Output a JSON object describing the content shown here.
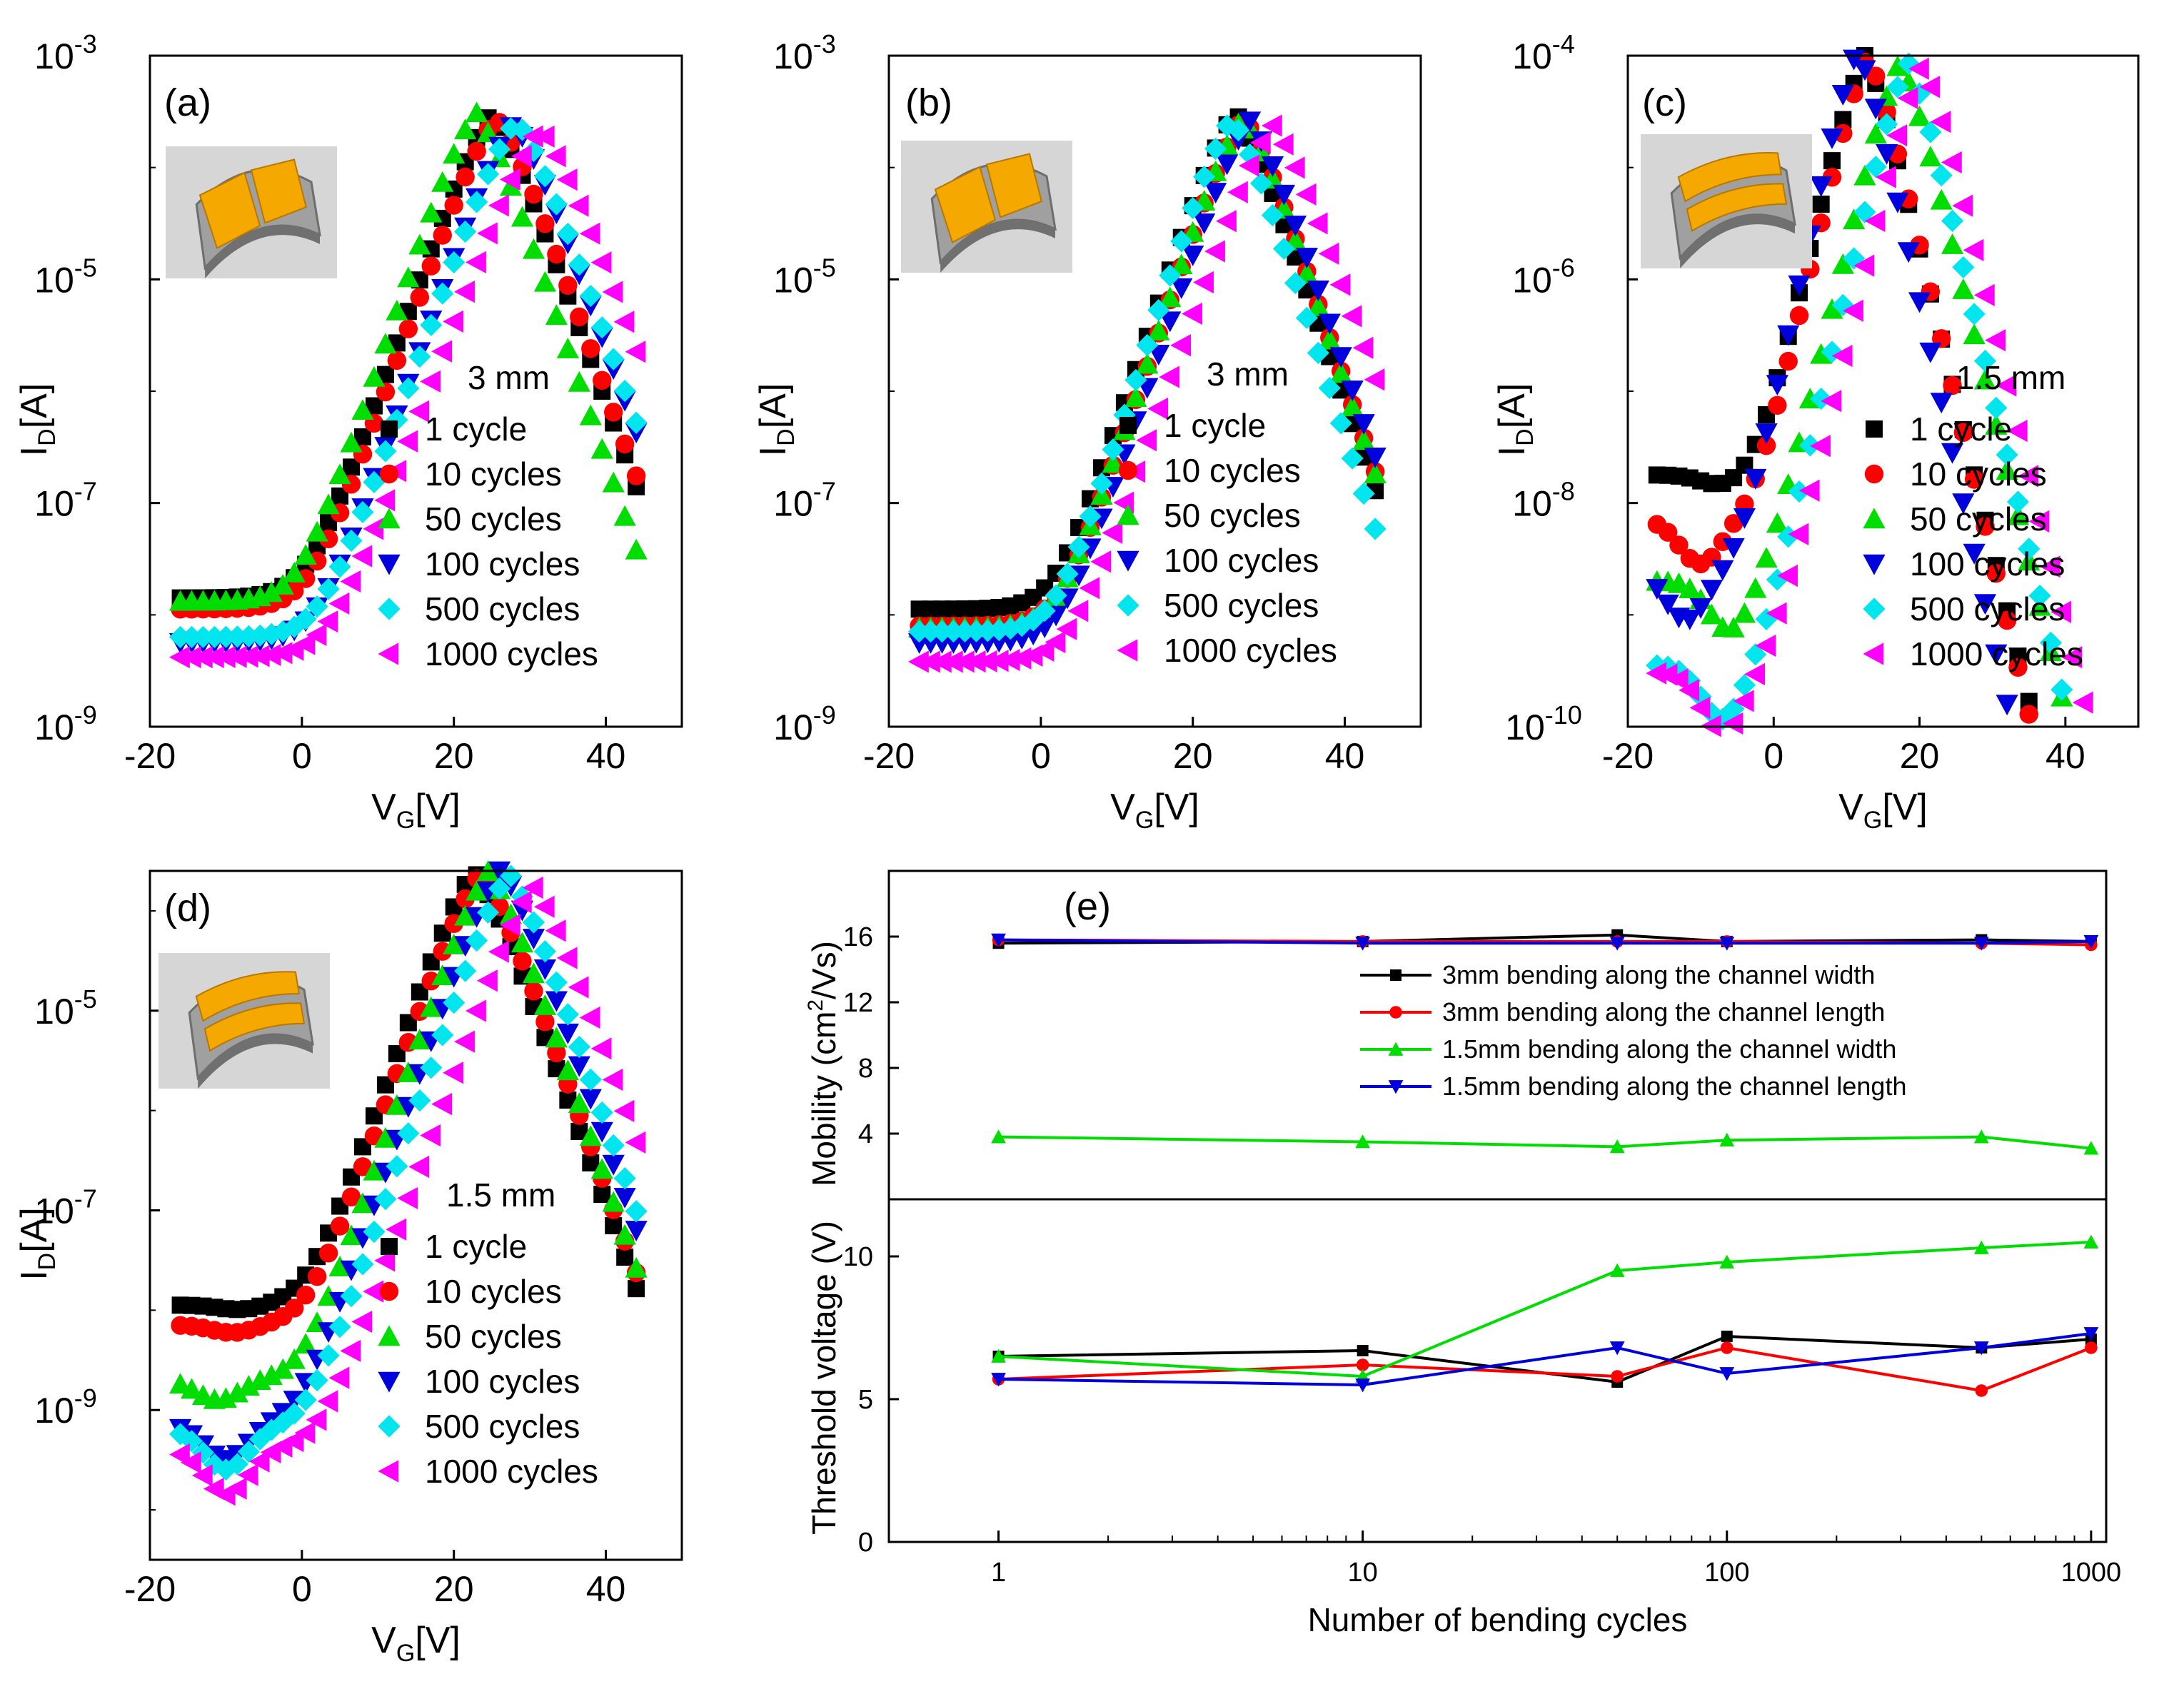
{
  "chart_data": [
    {
      "id": "a",
      "type": "scatter",
      "panel_label": "(a)",
      "annotation": "3 mm",
      "xlabel": "V",
      "xlabel_sub": "G",
      "xlabel_unit": "[V]",
      "ylabel": "I",
      "ylabel_sub": "D",
      "ylabel_unit": "[A]",
      "xlim": [
        -20,
        50
      ],
      "ylim_log10": [
        -9,
        -3
      ],
      "x_ticks": [
        "-20",
        "0",
        "20",
        "40"
      ],
      "y_ticks": [
        {
          "base": "10",
          "exp": "-3"
        },
        {
          "base": "10",
          "exp": "-5"
        },
        {
          "base": "10",
          "exp": "-7"
        },
        {
          "base": "10",
          "exp": "-9"
        }
      ],
      "inset": "channel-width bending",
      "series": [
        {
          "name": "1 cycle",
          "color": "#000000",
          "marker": "square",
          "floor": -8.15,
          "x0": 0.5,
          "slope": 0.19,
          "sat": -3.52
        },
        {
          "name": "10 cycles",
          "color": "#ff0000",
          "marker": "circle",
          "floor": -8.25,
          "x0": 0.8,
          "slope": 0.19,
          "sat": -3.55
        },
        {
          "name": "50 cycles",
          "color": "#00dd00",
          "marker": "triangle-up",
          "floor": -8.18,
          "x0": -0.5,
          "slope": 0.2,
          "sat": -3.5
        },
        {
          "name": "100 cycles",
          "color": "#0000dd",
          "marker": "triangle-down",
          "floor": -8.55,
          "x0": 1.8,
          "slope": 0.19,
          "sat": -3.6
        },
        {
          "name": "500 cycles",
          "color": "#00e5ee",
          "marker": "diamond",
          "floor": -8.5,
          "x0": 2.3,
          "slope": 0.19,
          "sat": -3.58
        },
        {
          "name": "1000 cycles",
          "color": "#ff00ff",
          "marker": "triangle-left",
          "floor": -8.68,
          "x0": 3.3,
          "slope": 0.18,
          "sat": -3.65
        }
      ]
    },
    {
      "id": "b",
      "type": "scatter",
      "panel_label": "(b)",
      "annotation": "3 mm",
      "xlabel": "V",
      "xlabel_sub": "G",
      "xlabel_unit": "[V]",
      "ylabel": "I",
      "ylabel_sub": "D",
      "ylabel_unit": "[A]",
      "xlim": [
        -20,
        50
      ],
      "ylim_log10": [
        -9,
        -3
      ],
      "x_ticks": [
        "-20",
        "0",
        "20",
        "40"
      ],
      "y_ticks": [
        {
          "base": "10",
          "exp": "-3"
        },
        {
          "base": "10",
          "exp": "-5"
        },
        {
          "base": "10",
          "exp": "-7"
        },
        {
          "base": "10",
          "exp": "-9"
        }
      ],
      "inset": "channel-width bending",
      "series": [
        {
          "name": "1 cycle",
          "color": "#000000",
          "marker": "square",
          "floor": -8.25,
          "x0": 1.8,
          "slope": 0.2,
          "sat": -3.5
        },
        {
          "name": "10 cycles",
          "color": "#ff0000",
          "marker": "circle",
          "floor": -8.4,
          "x0": 2.4,
          "slope": 0.2,
          "sat": -3.55
        },
        {
          "name": "50 cycles",
          "color": "#00dd00",
          "marker": "triangle-up",
          "floor": -8.42,
          "x0": 2.2,
          "slope": 0.2,
          "sat": -3.55
        },
        {
          "name": "100 cycles",
          "color": "#0000dd",
          "marker": "triangle-down",
          "floor": -8.55,
          "x0": 2.6,
          "slope": 0.2,
          "sat": -3.58
        },
        {
          "name": "500 cycles",
          "color": "#00e5ee",
          "marker": "diamond",
          "floor": -8.45,
          "x0": 1.8,
          "slope": 0.21,
          "sat": -3.56
        },
        {
          "name": "1000 cycles",
          "color": "#ff00ff",
          "marker": "triangle-left",
          "floor": -8.72,
          "x0": 3.6,
          "slope": 0.19,
          "sat": -3.62
        }
      ]
    },
    {
      "id": "c",
      "type": "scatter",
      "panel_label": "(c)",
      "annotation": "1.5 mm",
      "xlabel": "V",
      "xlabel_sub": "G",
      "xlabel_unit": "[V]",
      "ylabel": "I",
      "ylabel_sub": "D",
      "ylabel_unit": "[A]",
      "xlim": [
        -20,
        50
      ],
      "ylim_log10": [
        -10,
        -4
      ],
      "x_ticks": [
        "-20",
        "0",
        "20",
        "40"
      ],
      "y_ticks": [
        {
          "base": "10",
          "exp": "-4"
        },
        {
          "base": "10",
          "exp": "-6"
        },
        {
          "base": "10",
          "exp": "-8"
        },
        {
          "base": "10",
          "exp": "-10"
        }
      ],
      "inset": "channel-length bending",
      "series": [
        {
          "name": "1 cycle",
          "color": "#000000",
          "marker": "square",
          "floor": -8.05,
          "x0": -2.5,
          "slope": 0.27,
          "sat": -4.0,
          "dip": 0.1,
          "xmin": -7
        },
        {
          "name": "10 cycles",
          "color": "#ff0000",
          "marker": "circle",
          "floor": -8.45,
          "x0": -3.0,
          "slope": 0.28,
          "sat": -4.0,
          "dip": 0.4,
          "xmin": -10
        },
        {
          "name": "50 cycles",
          "color": "#00dd00",
          "marker": "triangle-up",
          "floor": -9.0,
          "x0": -1.0,
          "slope": 0.27,
          "sat": -4.05,
          "dip": 0.45,
          "xmin": -6
        },
        {
          "name": "100 cycles",
          "color": "#0000dd",
          "marker": "triangle-down",
          "floor": -8.9,
          "x0": -5.0,
          "slope": 0.3,
          "sat": -3.95,
          "dip": 0.45,
          "xmin": -12
        },
        {
          "name": "500 cycles",
          "color": "#00e5ee",
          "marker": "diamond",
          "floor": -9.75,
          "x0": -2.0,
          "slope": 0.28,
          "sat": -4.05,
          "dip": 0.5,
          "xmin": -7
        },
        {
          "name": "1000 cycles",
          "color": "#ff00ff",
          "marker": "triangle-left",
          "floor": -9.82,
          "x0": -1.0,
          "slope": 0.27,
          "sat": -4.08,
          "dip": 0.55,
          "xmin": -7
        }
      ]
    },
    {
      "id": "d",
      "type": "scatter",
      "panel_label": "(d)",
      "annotation": "1.5 mm",
      "xlabel": "V",
      "xlabel_sub": "G",
      "xlabel_unit": "[V]",
      "ylabel": "I",
      "ylabel_sub": "D",
      "ylabel_unit": "[A]",
      "xlim": [
        -20,
        50
      ],
      "ylim_log10": [
        -10.5,
        -3.6
      ],
      "x_ticks": [
        "-20",
        "0",
        "20",
        "40"
      ],
      "y_ticks": [
        {
          "base": "10",
          "exp": "-5"
        },
        {
          "base": "10",
          "exp": "-7"
        },
        {
          "base": "10",
          "exp": "-9"
        }
      ],
      "inset": "channel-length bending",
      "series": [
        {
          "name": "1 cycle",
          "color": "#000000",
          "marker": "square",
          "floor": -8.25,
          "x0": 0.5,
          "slope": 0.21,
          "sat": -3.6,
          "dip": 0.05,
          "xmin": -8
        },
        {
          "name": "10 cycles",
          "color": "#ff0000",
          "marker": "circle",
          "floor": -8.45,
          "x0": 0.5,
          "slope": 0.21,
          "sat": -3.62,
          "dip": 0.08,
          "xmin": -9
        },
        {
          "name": "50 cycles",
          "color": "#00dd00",
          "marker": "triangle-up",
          "floor": -9.0,
          "x0": 0.0,
          "slope": 0.22,
          "sat": -3.6,
          "dip": 0.2,
          "xmin": -11
        },
        {
          "name": "100 cycles",
          "color": "#0000dd",
          "marker": "triangle-down",
          "floor": -9.45,
          "x0": -0.5,
          "slope": 0.22,
          "sat": -3.58,
          "dip": 0.35,
          "xmin": -10
        },
        {
          "name": "500 cycles",
          "color": "#00e5ee",
          "marker": "diamond",
          "floor": -9.5,
          "x0": 0.5,
          "slope": 0.22,
          "sat": -3.62,
          "dip": 0.4,
          "xmin": -10
        },
        {
          "name": "1000 cycles",
          "color": "#ff00ff",
          "marker": "triangle-left",
          "floor": -9.7,
          "x0": 2.0,
          "slope": 0.21,
          "sat": -3.75,
          "dip": 0.45,
          "xmin": -10
        }
      ]
    },
    {
      "id": "e",
      "type": "line",
      "panel_label": "(e)",
      "xscale": "log",
      "xlabel": "Number of bending cycles",
      "x": [
        1,
        10,
        50,
        100,
        500,
        1000
      ],
      "xlim": [
        0.5,
        1100
      ],
      "x_ticks": [
        "1",
        "10",
        "100",
        "1000"
      ],
      "legend": [
        "3mm bending along the channel width",
        "3mm bending along the channel length",
        "1.5mm bending along the channel width",
        "1.5mm bending along the channel length"
      ],
      "top": {
        "ylabel": "Mobility (cm",
        "ylabel_sup": "2",
        "ylabel_tail": "/Vs)",
        "ylim": [
          0,
          20
        ],
        "y_ticks": [
          "4",
          "8",
          "12",
          "16"
        ],
        "series": [
          {
            "name": "3mm bending along the channel width",
            "color": "#000000",
            "marker": "square",
            "values": [
              15.6,
              15.7,
              16.1,
              15.7,
              15.8,
              15.7
            ]
          },
          {
            "name": "3mm bending along the channel length",
            "color": "#ff0000",
            "marker": "circle",
            "values": [
              15.8,
              15.7,
              15.7,
              15.7,
              15.6,
              15.5
            ]
          },
          {
            "name": "1.5mm bending along the channel width",
            "color": "#00dd00",
            "marker": "triangle-up",
            "values": [
              3.8,
              3.5,
              3.2,
              3.6,
              3.8,
              3.1
            ]
          },
          {
            "name": "1.5mm bending along the channel length",
            "color": "#0000dd",
            "marker": "triangle-down",
            "values": [
              15.8,
              15.6,
              15.6,
              15.6,
              15.6,
              15.7
            ]
          }
        ]
      },
      "bottom": {
        "ylabel": "Threshold voltage (V)",
        "ylim": [
          0,
          12
        ],
        "y_ticks": [
          "0",
          "5",
          "10"
        ],
        "series": [
          {
            "name": "3mm bending along the channel width",
            "color": "#000000",
            "marker": "square",
            "values": [
              6.5,
              6.7,
              5.6,
              7.2,
              6.8,
              7.1
            ]
          },
          {
            "name": "3mm bending along the channel length",
            "color": "#ff0000",
            "marker": "circle",
            "values": [
              5.7,
              6.2,
              5.8,
              6.8,
              5.3,
              6.8
            ]
          },
          {
            "name": "1.5mm bending along the channel width",
            "color": "#00dd00",
            "marker": "triangle-up",
            "values": [
              6.5,
              5.8,
              9.5,
              9.8,
              10.3,
              10.5
            ]
          },
          {
            "name": "1.5mm bending along the channel length",
            "color": "#0000dd",
            "marker": "triangle-down",
            "values": [
              5.7,
              5.5,
              6.8,
              5.9,
              6.8,
              7.3
            ]
          }
        ]
      }
    }
  ]
}
